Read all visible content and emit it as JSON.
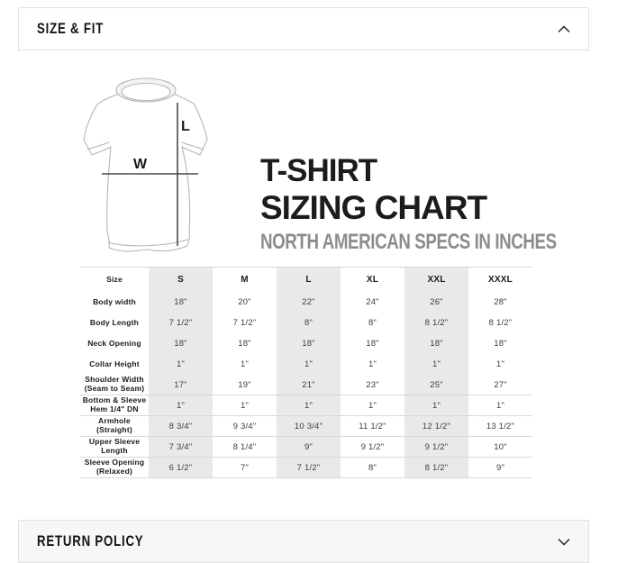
{
  "accordion": {
    "size_fit": {
      "label": "SIZE & FIT"
    },
    "return_policy": {
      "label": "RETURN POLICY"
    }
  },
  "chart": {
    "title_line1": "T-SHIRT",
    "title_line2": "SIZING CHART",
    "subtitle": "NORTH AMERICAN SPECS IN INCHES",
    "diagram_labels": {
      "length": "L",
      "width": "W"
    }
  },
  "table": {
    "columns": [
      "Size",
      "S",
      "M",
      "L",
      "XL",
      "XXL",
      "XXXL"
    ],
    "rows": [
      {
        "label": "Body width",
        "values": [
          "18\"",
          "20\"",
          "22\"",
          "24\"",
          "26\"",
          "28\""
        ]
      },
      {
        "label": "Body Length",
        "values": [
          "7 1/2\"",
          "7 1/2\"",
          "8\"",
          "8\"",
          "8 1/2\"",
          "8 1/2\""
        ]
      },
      {
        "label": "Neck Opening",
        "values": [
          "18\"",
          "18\"",
          "18\"",
          "18\"",
          "18\"",
          "18\""
        ]
      },
      {
        "label": "Collar Height",
        "values": [
          "1\"",
          "1\"",
          "1\"",
          "1\"",
          "1\"",
          "1\""
        ]
      },
      {
        "label": "Shoulder Width (Seam to Seam)",
        "values": [
          "17\"",
          "19\"",
          "21\"",
          "23\"",
          "25\"",
          "27\""
        ]
      },
      {
        "label": "Bottom & Sleeve Hem 1/4\" DN",
        "values": [
          "1\"",
          "1\"",
          "1\"",
          "1\"",
          "1\"",
          "1\""
        ]
      },
      {
        "label": "Armhole (Straight)",
        "values": [
          "8 3/4\"",
          "9 3/4\"",
          "10 3/4\"",
          "11 1/2\"",
          "12 1/2\"",
          "13 1/2\""
        ]
      },
      {
        "label": "Upper Sleeve Length",
        "values": [
          "7 3/4\"",
          "8 1/4\"",
          "9\"",
          "9 1/2\"",
          "9 1/2\"",
          "10\""
        ]
      },
      {
        "label": "Sleeve Opening (Relaxed)",
        "values": [
          "6 1/2\"",
          "7\"",
          "7 1/2\"",
          "8\"",
          "8 1/2\"",
          "9\""
        ]
      }
    ]
  },
  "colors": {
    "stripe": "#e9e9e9",
    "border": "#e3e3e3",
    "rule": "#d8d8d8",
    "title": "#1c1c1c",
    "subtitle_gray": "#8c8c8c"
  }
}
